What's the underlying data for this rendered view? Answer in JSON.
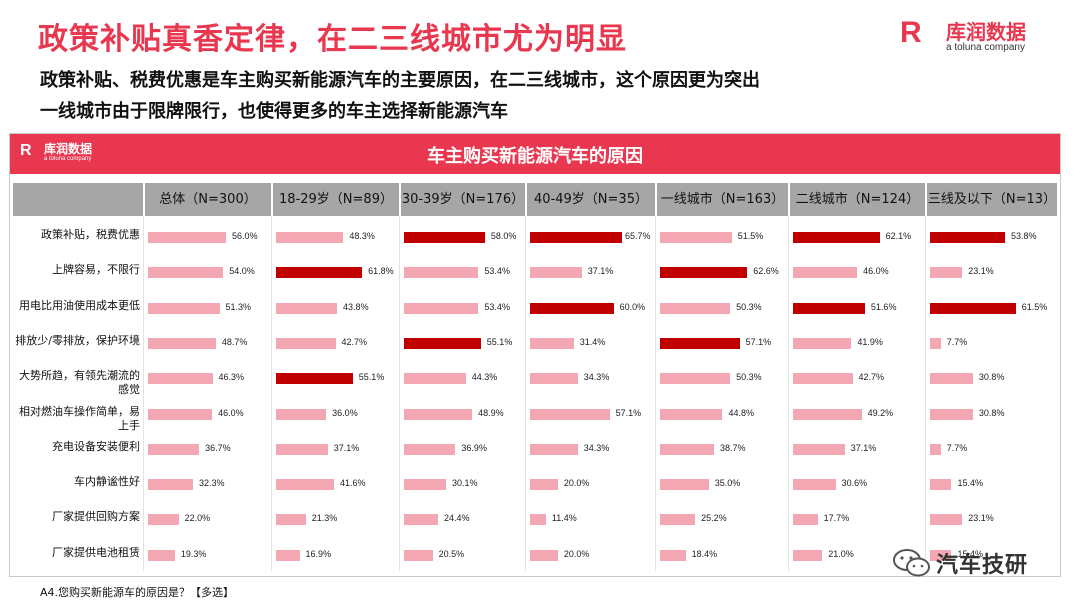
{
  "page": {
    "title": "政策补贴真香定律，在二三线城市尤为明显",
    "subtitle_lines": [
      "政策补贴、税费优惠是车主购买新能源汽车的主要原因，在二三线城市，这个原因更为突出",
      "一线城市由于限牌限行，也使得更多的车主选择新能源汽车"
    ],
    "footnote": "A4.您购买新能源车的原因是？【多选】",
    "watermark": "汽车技研"
  },
  "logo": {
    "mark": "R",
    "name_cn": "库润数据",
    "name_en": "a toluna company"
  },
  "colors": {
    "banner": "#e8374f",
    "bar": "#f2a7b3",
    "bar_highlight": "#c00000",
    "header": "#a6a6a6",
    "title": "#e8374f"
  },
  "chart_data": {
    "type": "bar",
    "orientation": "horizontal",
    "title": "车主购买新能源汽车的原因",
    "categories": [
      "政策补贴，税费优惠",
      "上牌容易，不限行",
      "用电比用油使用成本更低",
      "排放少/零排放，保护环境",
      "大势所趋，有领先潮流的感觉",
      "相对燃油车操作简单，易上手",
      "充电设备安装便利",
      "车内静谧性好",
      "厂家提供回购方案",
      "厂家提供电池租赁"
    ],
    "series": [
      {
        "name": "总体（N=300）",
        "values": [
          56.0,
          54.0,
          51.3,
          48.7,
          46.3,
          46.0,
          36.7,
          32.3,
          22.0,
          19.3
        ],
        "highlight": []
      },
      {
        "name": "18-29岁（N=89）",
        "values": [
          48.3,
          61.8,
          43.8,
          42.7,
          55.1,
          36.0,
          37.1,
          41.6,
          21.3,
          16.9
        ],
        "highlight": [
          1,
          4
        ]
      },
      {
        "name": "30-39岁（N=176）",
        "values": [
          58.0,
          53.4,
          53.4,
          55.1,
          44.3,
          48.9,
          36.9,
          30.1,
          24.4,
          20.5
        ],
        "highlight": [
          0,
          3
        ]
      },
      {
        "name": "40-49岁（N=35）",
        "values": [
          65.7,
          37.1,
          60.0,
          31.4,
          34.3,
          57.1,
          34.3,
          20.0,
          11.4,
          20.0
        ],
        "highlight": [
          0,
          2
        ]
      },
      {
        "name": "一线城市（N=163）",
        "values": [
          51.5,
          62.6,
          50.3,
          57.1,
          50.3,
          44.8,
          38.7,
          35.0,
          25.2,
          18.4
        ],
        "highlight": [
          1,
          3
        ]
      },
      {
        "name": "二线城市（N=124）",
        "values": [
          62.1,
          46.0,
          51.6,
          41.9,
          42.7,
          49.2,
          37.1,
          30.6,
          17.7,
          21.0
        ],
        "highlight": [
          0,
          2
        ]
      },
      {
        "name": "三线及以下（N=13）",
        "values": [
          53.8,
          23.1,
          61.5,
          7.7,
          30.8,
          30.8,
          7.7,
          15.4,
          23.1,
          15.4
        ],
        "highlight": [
          0,
          2
        ]
      }
    ],
    "value_suffix": "%",
    "xlim": [
      0,
      100
    ]
  }
}
